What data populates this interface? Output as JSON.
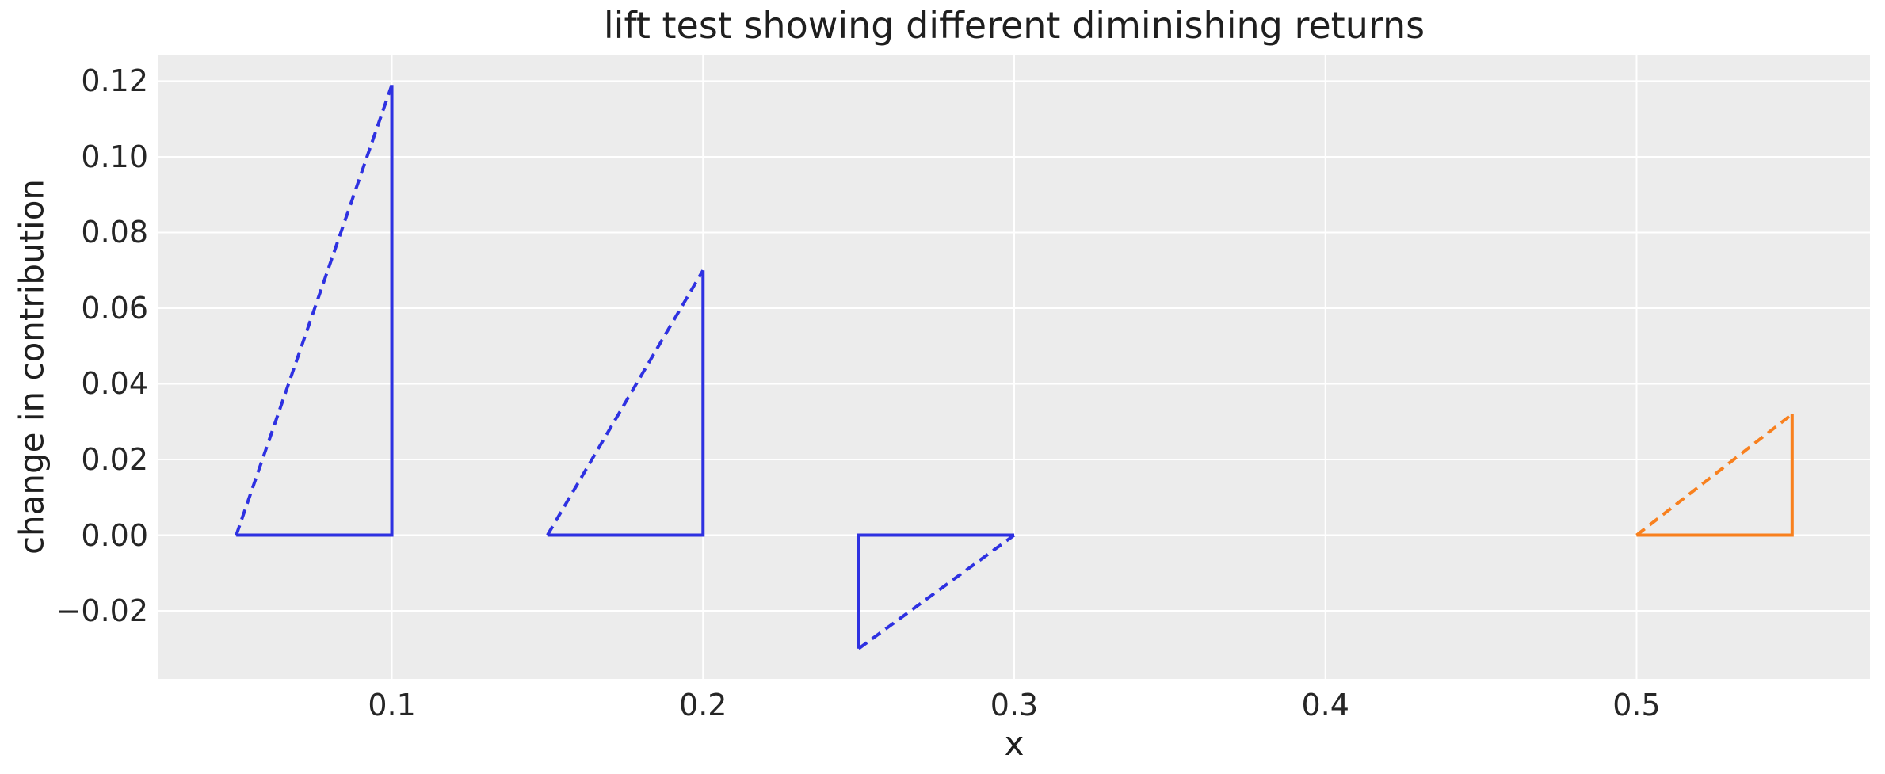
{
  "chart_data": {
    "type": "line",
    "title": "lift test showing different diminishing returns",
    "xlabel": "x",
    "ylabel": "change in contribution",
    "xlim": [
      0.025,
      0.575
    ],
    "ylim": [
      -0.038,
      0.127
    ],
    "grid": true,
    "legend_position": "none",
    "plot_bg_color": "#ececec",
    "grid_color": "#ffffff",
    "text_color": "#1f1f1f",
    "tick_text_color": "#262626",
    "x_ticks": [
      {
        "value": 0.1,
        "label": "0.1"
      },
      {
        "value": 0.2,
        "label": "0.2"
      },
      {
        "value": 0.3,
        "label": "0.3"
      },
      {
        "value": 0.4,
        "label": "0.4"
      },
      {
        "value": 0.5,
        "label": "0.5"
      }
    ],
    "y_ticks": [
      {
        "value": 0.12,
        "label": "0.12"
      },
      {
        "value": 0.1,
        "label": "0.10"
      },
      {
        "value": 0.08,
        "label": "0.08"
      },
      {
        "value": 0.06,
        "label": "0.06"
      },
      {
        "value": 0.04,
        "label": "0.04"
      },
      {
        "value": 0.02,
        "label": "0.02"
      },
      {
        "value": 0.0,
        "label": "0.00"
      },
      {
        "value": -0.02,
        "label": "−0.02"
      }
    ],
    "line_styles": {
      "hypotenuse": "dashed",
      "legs": "solid",
      "stroke_width": 4,
      "dash_pattern": "13 8"
    },
    "triangles": [
      {
        "name": "lift-triangle-1",
        "color": "#2e31e1",
        "x_start": 0.05,
        "x_end": 0.1,
        "y_base": 0.0,
        "y_tip": 0.119,
        "solid_edges": [
          [
            0.1,
            0.119
          ],
          [
            0.1,
            0.0
          ],
          [
            0.05,
            0.0
          ]
        ],
        "dashed_edge": [
          [
            0.05,
            0.0
          ],
          [
            0.1,
            0.119
          ]
        ]
      },
      {
        "name": "lift-triangle-2",
        "color": "#2e31e1",
        "x_start": 0.15,
        "x_end": 0.2,
        "y_base": 0.0,
        "y_tip": 0.07,
        "solid_edges": [
          [
            0.2,
            0.07
          ],
          [
            0.2,
            0.0
          ],
          [
            0.15,
            0.0
          ]
        ],
        "dashed_edge": [
          [
            0.15,
            0.0
          ],
          [
            0.2,
            0.07
          ]
        ]
      },
      {
        "name": "lift-triangle-3",
        "color": "#2e31e1",
        "x_start": 0.25,
        "x_end": 0.3,
        "y_base": 0.0,
        "y_tip": -0.03,
        "solid_edges": [
          [
            0.25,
            -0.03
          ],
          [
            0.25,
            0.0
          ],
          [
            0.3,
            0.0
          ]
        ],
        "dashed_edge": [
          [
            0.25,
            -0.03
          ],
          [
            0.3,
            0.0
          ]
        ]
      },
      {
        "name": "lift-triangle-4",
        "color": "#f8801e",
        "x_start": 0.5,
        "x_end": 0.55,
        "y_base": 0.0,
        "y_tip": 0.032,
        "solid_edges": [
          [
            0.55,
            0.032
          ],
          [
            0.55,
            0.0
          ],
          [
            0.5,
            0.0
          ]
        ],
        "dashed_edge": [
          [
            0.5,
            0.0
          ],
          [
            0.55,
            0.032
          ]
        ]
      }
    ]
  }
}
